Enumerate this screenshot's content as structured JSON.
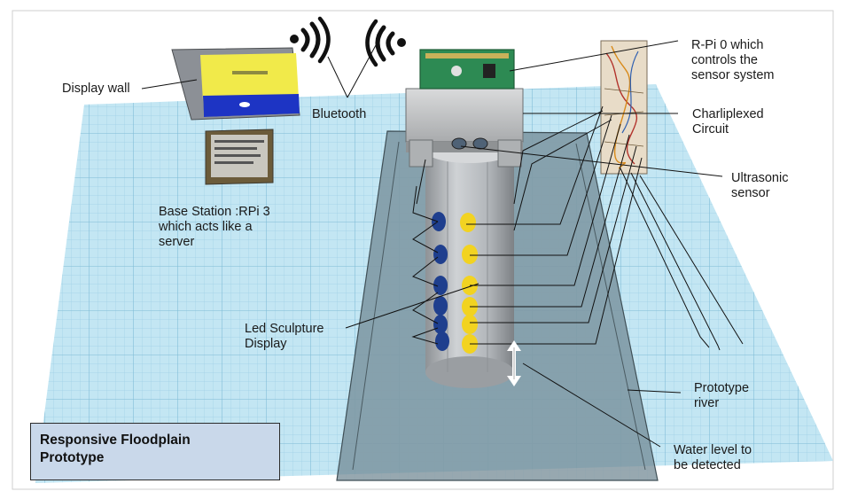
{
  "title_box": {
    "line1": "Responsive Floodplain",
    "line2": "Prototype"
  },
  "labels": {
    "display_wall": "Display wall",
    "bluetooth": "Bluetooth",
    "base_station": [
      "Base Station :RPi 3",
      "which acts like a",
      "server"
    ],
    "rpi0": [
      "R-Pi 0 which",
      "controls the",
      "sensor system"
    ],
    "charliplexed": [
      "Charliplexed",
      "Circuit"
    ],
    "ultrasonic": [
      "Ultrasonic",
      "sensor"
    ],
    "led_sculpture": [
      "Led Sculpture",
      "Display"
    ],
    "prototype_river": [
      "Prototype",
      "river"
    ],
    "water_level": [
      "Water level to",
      "be detected"
    ]
  },
  "colors": {
    "grid_floor": "#bfe3f1",
    "grid_line": "#8fc7df",
    "river": "#7a8f99",
    "cylinder": "#b9bcc0",
    "led_blue": "#1f3f8e",
    "led_yellow": "#f2d321",
    "title_bg": "#c9d8ea"
  },
  "icons": [
    "wifi-signal-icon",
    "arrow-double-icon"
  ]
}
